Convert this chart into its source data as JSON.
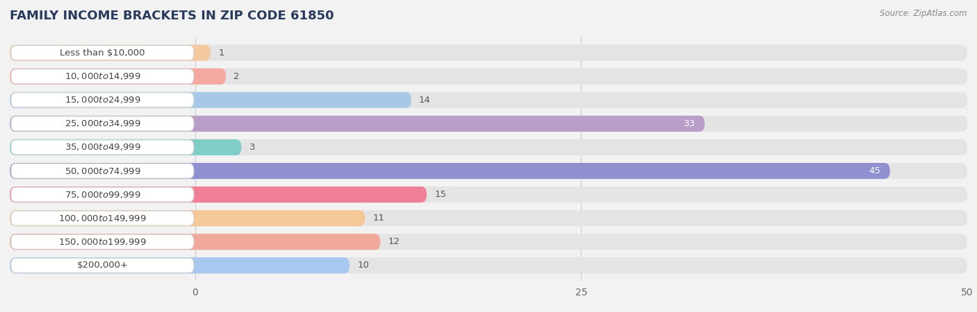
{
  "title": "FAMILY INCOME BRACKETS IN ZIP CODE 61850",
  "source": "Source: ZipAtlas.com",
  "categories": [
    "Less than $10,000",
    "$10,000 to $14,999",
    "$15,000 to $24,999",
    "$25,000 to $34,999",
    "$35,000 to $49,999",
    "$50,000 to $74,999",
    "$75,000 to $99,999",
    "$100,000 to $149,999",
    "$150,000 to $199,999",
    "$200,000+"
  ],
  "values": [
    1,
    2,
    14,
    33,
    3,
    45,
    15,
    11,
    12,
    10
  ],
  "bar_colors": [
    "#f5c9a0",
    "#f5a8a0",
    "#a8c8e8",
    "#b89ec8",
    "#80cdc8",
    "#9090d0",
    "#f08098",
    "#f5c898",
    "#f0a898",
    "#a8c8f0"
  ],
  "background_color": "#f2f2f2",
  "bar_bg_color": "#e4e4e4",
  "label_box_color": "#ffffff",
  "label_box_edge_color": "#d0d0d0",
  "grid_color": "#cccccc",
  "title_color": "#2a3a5c",
  "source_color": "#888888",
  "value_color_inside": "#ffffff",
  "value_color_outside": "#555555",
  "label_text_color": "#444444",
  "xlim": [
    -12,
    50
  ],
  "data_xlim": [
    0,
    50
  ],
  "xticks": [
    0,
    25,
    50
  ],
  "title_fontsize": 13,
  "label_fontsize": 9.5,
  "value_fontsize": 9.5,
  "bar_height": 0.68,
  "inside_threshold": 30
}
